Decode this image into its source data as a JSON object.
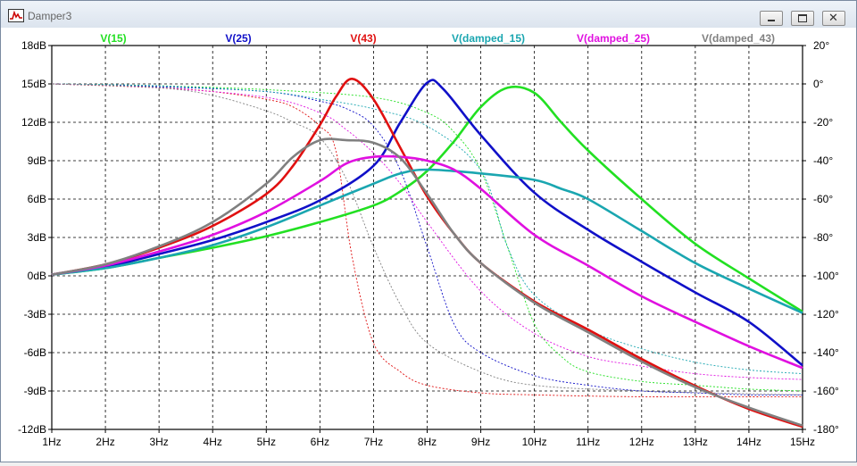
{
  "window": {
    "title": "Damper3",
    "minimize_icon": "minimize-icon",
    "restore_icon": "restore-icon",
    "close_icon": "close-icon"
  },
  "chart_data": {
    "type": "line",
    "x": {
      "ticks": [
        "1Hz",
        "2Hz",
        "3Hz",
        "4Hz",
        "5Hz",
        "6Hz",
        "7Hz",
        "8Hz",
        "9Hz",
        "10Hz",
        "11Hz",
        "12Hz",
        "13Hz",
        "14Hz",
        "15Hz"
      ],
      "range": [
        1,
        15
      ]
    },
    "y_left": {
      "ticks": [
        "18dB",
        "15dB",
        "12dB",
        "9dB",
        "6dB",
        "3dB",
        "0dB",
        "-3dB",
        "-6dB",
        "-9dB",
        "-12dB"
      ],
      "range": [
        -12,
        18
      ]
    },
    "y_right": {
      "ticks": [
        "20°",
        "0°",
        "-20°",
        "-40°",
        "-60°",
        "-80°",
        "-100°",
        "-120°",
        "-140°",
        "-160°",
        "-180°"
      ],
      "range": [
        -180,
        20
      ]
    },
    "grid": true,
    "legend_position": "top",
    "series": [
      {
        "name": "V(15)",
        "color": "#22e022",
        "magnitude_db": [
          [
            1,
            0.1
          ],
          [
            2,
            0.6
          ],
          [
            3,
            1.4
          ],
          [
            4,
            2.2
          ],
          [
            5,
            3.1
          ],
          [
            6,
            4.2
          ],
          [
            7,
            5.5
          ],
          [
            7.5,
            6.6
          ],
          [
            8,
            8.2
          ],
          [
            8.5,
            10.5
          ],
          [
            9,
            13.2
          ],
          [
            9.5,
            14.7
          ],
          [
            10,
            14.3
          ],
          [
            10.5,
            12.0
          ],
          [
            11,
            9.8
          ],
          [
            12,
            6.0
          ],
          [
            13,
            2.5
          ],
          [
            14,
            -0.2
          ],
          [
            15,
            -2.8
          ]
        ],
        "phase_deg": [
          [
            1,
            0
          ],
          [
            3,
            -1
          ],
          [
            5,
            -3
          ],
          [
            7,
            -7
          ],
          [
            8,
            -15
          ],
          [
            8.5,
            -25
          ],
          [
            9,
            -45
          ],
          [
            9.5,
            -85
          ],
          [
            10,
            -125
          ],
          [
            10.5,
            -142
          ],
          [
            11,
            -150
          ],
          [
            12,
            -155
          ],
          [
            13,
            -157
          ],
          [
            14,
            -159
          ],
          [
            15,
            -160
          ]
        ]
      },
      {
        "name": "V(25)",
        "color": "#1010c8",
        "magnitude_db": [
          [
            1,
            0.1
          ],
          [
            2,
            0.7
          ],
          [
            3,
            1.7
          ],
          [
            4,
            2.8
          ],
          [
            5,
            4.2
          ],
          [
            6,
            5.9
          ],
          [
            7,
            8.6
          ],
          [
            7.5,
            12.0
          ],
          [
            8,
            15.1
          ],
          [
            8.3,
            14.6
          ],
          [
            9,
            11.0
          ],
          [
            10,
            6.5
          ],
          [
            11,
            3.6
          ],
          [
            12,
            1.1
          ],
          [
            13,
            -1.3
          ],
          [
            14,
            -3.6
          ],
          [
            15,
            -7.0
          ]
        ],
        "phase_deg": [
          [
            1,
            0
          ],
          [
            3,
            -1.5
          ],
          [
            5,
            -4
          ],
          [
            6,
            -9
          ],
          [
            6.5,
            -13
          ],
          [
            7,
            -22
          ],
          [
            7.5,
            -45
          ],
          [
            8,
            -85
          ],
          [
            8.5,
            -125
          ],
          [
            9,
            -140
          ],
          [
            10,
            -152
          ],
          [
            11,
            -157
          ],
          [
            12,
            -160
          ],
          [
            13,
            -161
          ],
          [
            14,
            -162
          ],
          [
            15,
            -162
          ]
        ]
      },
      {
        "name": "V(43)",
        "color": "#e01010",
        "magnitude_db": [
          [
            1,
            0.1
          ],
          [
            2,
            0.9
          ],
          [
            3,
            2.2
          ],
          [
            4,
            3.9
          ],
          [
            5,
            6.4
          ],
          [
            5.5,
            8.6
          ],
          [
            6,
            11.8
          ],
          [
            6.3,
            14.0
          ],
          [
            6.6,
            15.4
          ],
          [
            7,
            13.8
          ],
          [
            7.5,
            10.0
          ],
          [
            8,
            6.2
          ],
          [
            8.5,
            3.3
          ],
          [
            9,
            1.0
          ],
          [
            10,
            -2.0
          ],
          [
            11,
            -4.2
          ],
          [
            12,
            -6.5
          ],
          [
            13,
            -8.6
          ],
          [
            14,
            -10.4
          ],
          [
            15,
            -11.8
          ]
        ],
        "phase_deg": [
          [
            1,
            0
          ],
          [
            3,
            -2
          ],
          [
            4,
            -4
          ],
          [
            5,
            -8
          ],
          [
            5.5,
            -12
          ],
          [
            6,
            -22
          ],
          [
            6.3,
            -35
          ],
          [
            6.6,
            -90
          ],
          [
            7,
            -135
          ],
          [
            7.5,
            -150
          ],
          [
            8,
            -157
          ],
          [
            9,
            -161
          ],
          [
            10,
            -162
          ],
          [
            12,
            -163
          ],
          [
            15,
            -163
          ]
        ]
      },
      {
        "name": "V(damped_15)",
        "color": "#1aa6b0",
        "magnitude_db": [
          [
            1,
            0.1
          ],
          [
            2,
            0.6
          ],
          [
            3,
            1.4
          ],
          [
            4,
            2.4
          ],
          [
            5,
            3.8
          ],
          [
            6,
            5.5
          ],
          [
            7,
            7.2
          ],
          [
            7.5,
            8.0
          ],
          [
            8,
            8.3
          ],
          [
            9,
            8.0
          ],
          [
            10,
            7.5
          ],
          [
            10.5,
            6.8
          ],
          [
            11,
            6.0
          ],
          [
            12,
            3.5
          ],
          [
            13,
            1.0
          ],
          [
            14,
            -1.0
          ],
          [
            15,
            -2.9
          ]
        ],
        "phase_deg": [
          [
            1,
            0
          ],
          [
            3,
            -1
          ],
          [
            5,
            -4
          ],
          [
            6,
            -8
          ],
          [
            7,
            -13
          ],
          [
            8,
            -22
          ],
          [
            9,
            -45
          ],
          [
            9.5,
            -85
          ],
          [
            10,
            -110
          ],
          [
            11,
            -128
          ],
          [
            12,
            -138
          ],
          [
            13,
            -145
          ],
          [
            14,
            -149
          ],
          [
            15,
            -151
          ]
        ]
      },
      {
        "name": "V(damped_25)",
        "color": "#e010e0",
        "magnitude_db": [
          [
            1,
            0.1
          ],
          [
            2,
            0.8
          ],
          [
            3,
            1.9
          ],
          [
            4,
            3.2
          ],
          [
            5,
            5.0
          ],
          [
            6,
            7.4
          ],
          [
            6.5,
            8.8
          ],
          [
            7,
            9.3
          ],
          [
            7.5,
            9.3
          ],
          [
            8,
            9.0
          ],
          [
            8.5,
            8.3
          ],
          [
            9,
            6.8
          ],
          [
            10,
            3.2
          ],
          [
            11,
            0.8
          ],
          [
            12,
            -1.6
          ],
          [
            13,
            -3.6
          ],
          [
            14,
            -5.5
          ],
          [
            15,
            -7.2
          ]
        ],
        "phase_deg": [
          [
            1,
            0
          ],
          [
            3,
            -2
          ],
          [
            5,
            -7
          ],
          [
            6,
            -15
          ],
          [
            6.5,
            -24
          ],
          [
            7,
            -36
          ],
          [
            7.5,
            -52
          ],
          [
            8,
            -72
          ],
          [
            9,
            -108
          ],
          [
            10,
            -130
          ],
          [
            11,
            -142
          ],
          [
            12,
            -147
          ],
          [
            13,
            -151
          ],
          [
            14,
            -153
          ],
          [
            15,
            -154
          ]
        ]
      },
      {
        "name": "V(damped_43)",
        "color": "#808080",
        "magnitude_db": [
          [
            1,
            0.1
          ],
          [
            2,
            0.9
          ],
          [
            3,
            2.3
          ],
          [
            4,
            4.2
          ],
          [
            5,
            7.2
          ],
          [
            5.5,
            9.3
          ],
          [
            6,
            10.6
          ],
          [
            6.5,
            10.6
          ],
          [
            7,
            10.4
          ],
          [
            7.5,
            9.2
          ],
          [
            8,
            6.4
          ],
          [
            8.5,
            3.3
          ],
          [
            9,
            1.0
          ],
          [
            10,
            -2.1
          ],
          [
            11,
            -4.4
          ],
          [
            12,
            -6.7
          ],
          [
            13,
            -8.7
          ],
          [
            14,
            -10.3
          ],
          [
            15,
            -11.7
          ]
        ],
        "phase_deg": [
          [
            1,
            0
          ],
          [
            3,
            -2
          ],
          [
            4,
            -6
          ],
          [
            5,
            -14
          ],
          [
            5.5,
            -20
          ],
          [
            6,
            -28
          ],
          [
            6.5,
            -50
          ],
          [
            7,
            -85
          ],
          [
            7.5,
            -115
          ],
          [
            8,
            -135
          ],
          [
            9,
            -150
          ],
          [
            10,
            -157
          ],
          [
            12,
            -160
          ],
          [
            15,
            -162
          ]
        ]
      }
    ]
  }
}
